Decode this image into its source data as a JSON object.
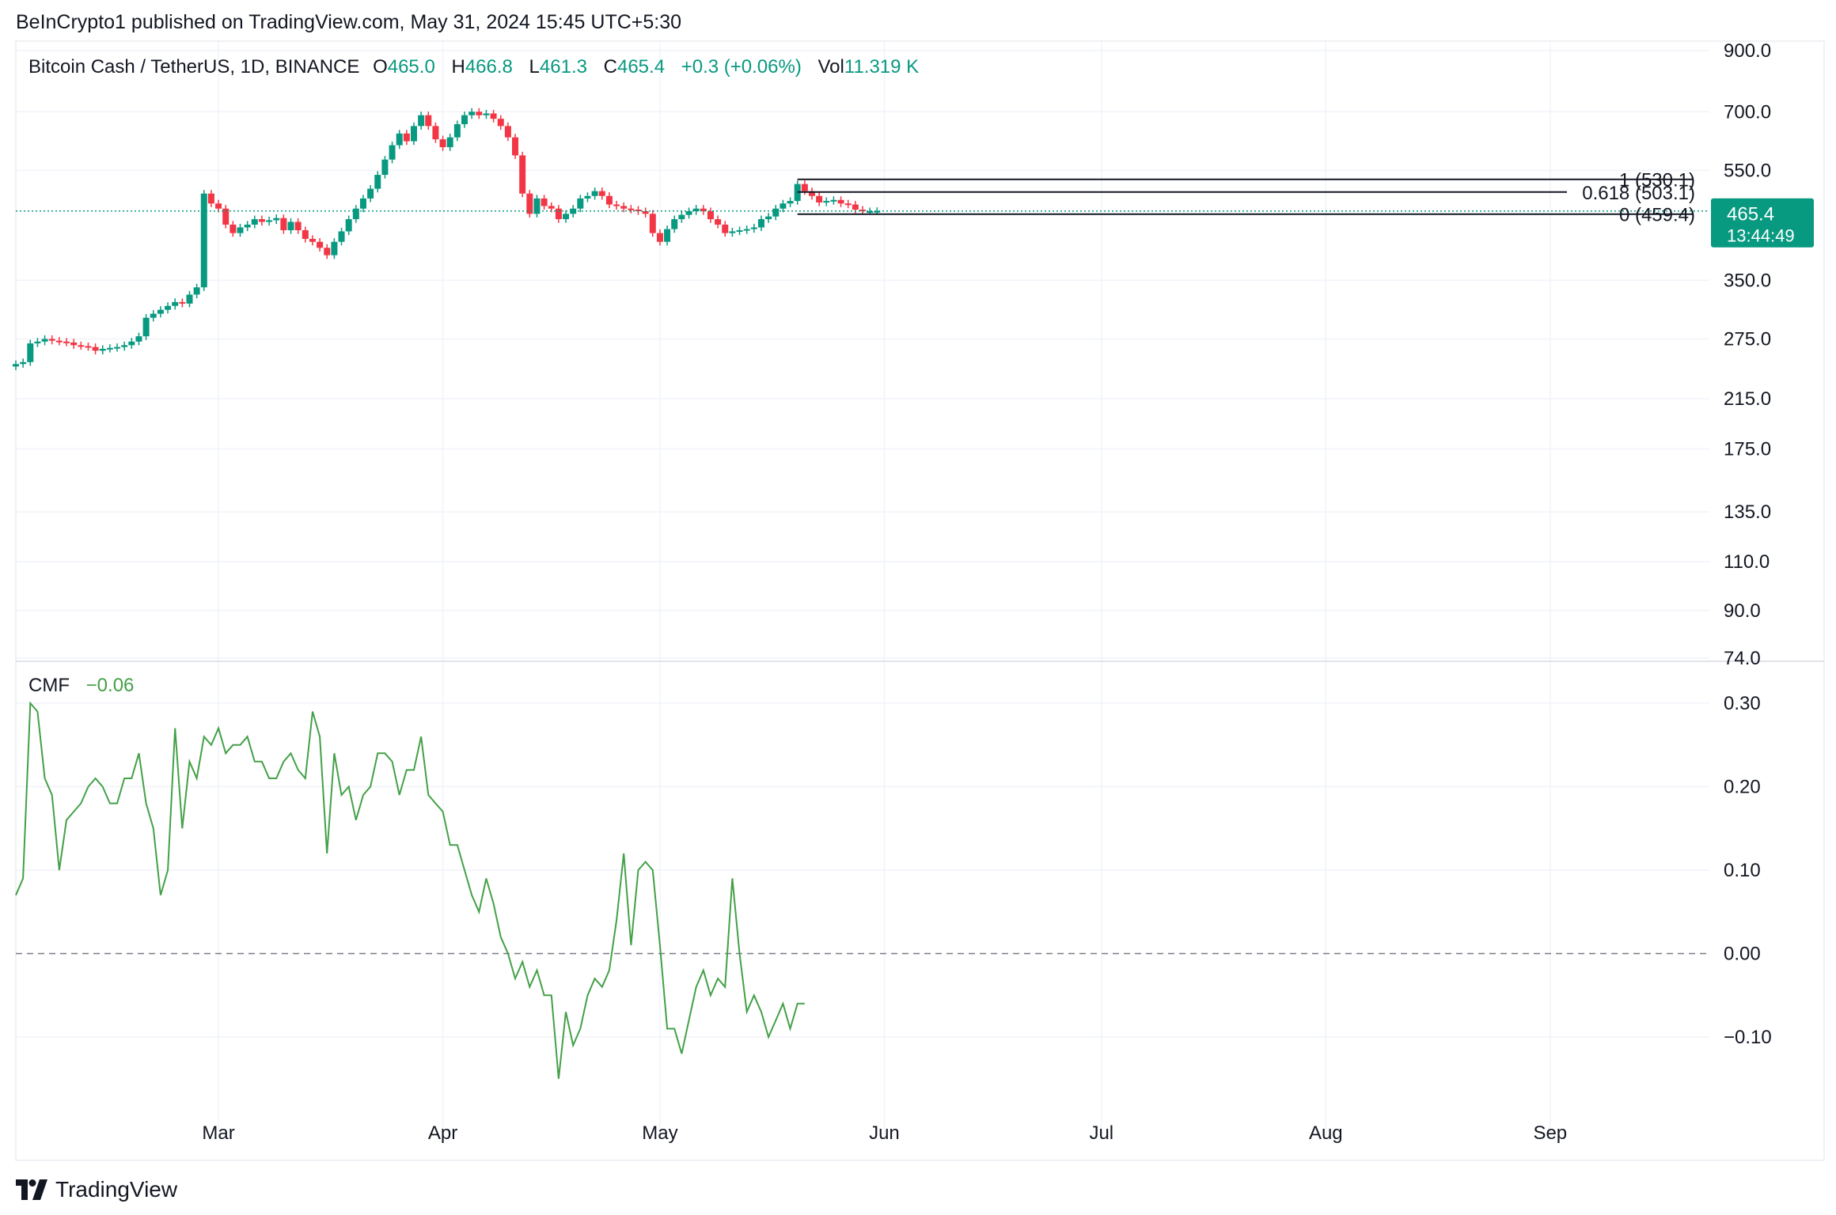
{
  "header": {
    "publisher": "BeInCrypto1 published on TradingView.com, May 31, 2024 15:45 UTC+5:30"
  },
  "legend": {
    "symbol": "Bitcoin Cash / TetherUS, 1D, BINANCE",
    "open_label": "O",
    "open": "465.0",
    "high_label": "H",
    "high": "466.8",
    "low_label": "L",
    "low": "461.3",
    "close_label": "C",
    "close": "465.4",
    "change": "+0.3 (+0.06%)",
    "vol_label": "Vol",
    "volume": "11.319 K"
  },
  "price_tag": {
    "price": "465.4",
    "countdown": "13:44:49"
  },
  "cmf_legend": {
    "label": "CMF",
    "value": "−0.06"
  },
  "footer": {
    "brand": "TradingView"
  },
  "colors": {
    "up": "#089981",
    "down": "#f23645",
    "cmf": "#43a047",
    "last_price": "#089981"
  },
  "chart_data": [
    {
      "type": "candlestick",
      "scale": "log",
      "y_ticks": [
        "900.0",
        "700.0",
        "550.0",
        "350.0",
        "275.0",
        "215.0",
        "175.0",
        "135.0",
        "110.0",
        "90.0",
        "74.0"
      ],
      "y_tick_values": [
        900,
        700,
        550,
        350,
        275,
        215,
        175,
        135,
        110,
        90,
        74
      ],
      "x_ticks": [
        "Mar",
        "Apr",
        "May",
        "Jun",
        "Jul",
        "Aug",
        "Sep"
      ],
      "x_range": [
        "2024-02-02",
        "2024-09-23"
      ],
      "last_price": 465.4,
      "closes": [
        {
          "date": "2024-02-02",
          "c": 248
        },
        {
          "date": "2024-02-03",
          "c": 250
        },
        {
          "date": "2024-02-04",
          "c": 270
        },
        {
          "date": "2024-02-05",
          "c": 272
        },
        {
          "date": "2024-02-06",
          "c": 275
        },
        {
          "date": "2024-02-07",
          "c": 273
        },
        {
          "date": "2024-02-08",
          "c": 272
        },
        {
          "date": "2024-02-09",
          "c": 271
        },
        {
          "date": "2024-02-10",
          "c": 268
        },
        {
          "date": "2024-02-11",
          "c": 267
        },
        {
          "date": "2024-02-12",
          "c": 266
        },
        {
          "date": "2024-02-13",
          "c": 262
        },
        {
          "date": "2024-02-14",
          "c": 264
        },
        {
          "date": "2024-02-15",
          "c": 265
        },
        {
          "date": "2024-02-16",
          "c": 266
        },
        {
          "date": "2024-02-17",
          "c": 268
        },
        {
          "date": "2024-02-18",
          "c": 272
        },
        {
          "date": "2024-02-19",
          "c": 278
        },
        {
          "date": "2024-02-20",
          "c": 300
        },
        {
          "date": "2024-02-21",
          "c": 305
        },
        {
          "date": "2024-02-22",
          "c": 310
        },
        {
          "date": "2024-02-23",
          "c": 315
        },
        {
          "date": "2024-02-24",
          "c": 320
        },
        {
          "date": "2024-02-25",
          "c": 318
        },
        {
          "date": "2024-02-26",
          "c": 330
        },
        {
          "date": "2024-02-27",
          "c": 340
        },
        {
          "date": "2024-02-28",
          "c": 500
        },
        {
          "date": "2024-02-29",
          "c": 480
        },
        {
          "date": "2024-03-01",
          "c": 470
        },
        {
          "date": "2024-03-02",
          "c": 440
        },
        {
          "date": "2024-03-03",
          "c": 425
        },
        {
          "date": "2024-03-04",
          "c": 435
        },
        {
          "date": "2024-03-05",
          "c": 440
        },
        {
          "date": "2024-03-06",
          "c": 450
        },
        {
          "date": "2024-03-07",
          "c": 445
        },
        {
          "date": "2024-03-08",
          "c": 448
        },
        {
          "date": "2024-03-09",
          "c": 452
        },
        {
          "date": "2024-03-10",
          "c": 430
        },
        {
          "date": "2024-03-11",
          "c": 445
        },
        {
          "date": "2024-03-12",
          "c": 430
        },
        {
          "date": "2024-03-13",
          "c": 415
        },
        {
          "date": "2024-03-14",
          "c": 410
        },
        {
          "date": "2024-03-15",
          "c": 400
        },
        {
          "date": "2024-03-16",
          "c": 388
        },
        {
          "date": "2024-03-17",
          "c": 410
        },
        {
          "date": "2024-03-18",
          "c": 428
        },
        {
          "date": "2024-03-19",
          "c": 450
        },
        {
          "date": "2024-03-20",
          "c": 470
        },
        {
          "date": "2024-03-21",
          "c": 490
        },
        {
          "date": "2024-03-22",
          "c": 510
        },
        {
          "date": "2024-03-23",
          "c": 540
        },
        {
          "date": "2024-03-24",
          "c": 575
        },
        {
          "date": "2024-03-25",
          "c": 610
        },
        {
          "date": "2024-03-26",
          "c": 640
        },
        {
          "date": "2024-03-27",
          "c": 620
        },
        {
          "date": "2024-03-28",
          "c": 660
        },
        {
          "date": "2024-03-29",
          "c": 690
        },
        {
          "date": "2024-03-30",
          "c": 660
        },
        {
          "date": "2024-03-31",
          "c": 625
        },
        {
          "date": "2024-04-01",
          "c": 605
        },
        {
          "date": "2024-04-02",
          "c": 630
        },
        {
          "date": "2024-04-03",
          "c": 665
        },
        {
          "date": "2024-04-04",
          "c": 690
        },
        {
          "date": "2024-04-05",
          "c": 700
        },
        {
          "date": "2024-04-06",
          "c": 690
        },
        {
          "date": "2024-04-07",
          "c": 695
        },
        {
          "date": "2024-04-08",
          "c": 680
        },
        {
          "date": "2024-04-09",
          "c": 660
        },
        {
          "date": "2024-04-10",
          "c": 630
        },
        {
          "date": "2024-04-11",
          "c": 585
        },
        {
          "date": "2024-04-12",
          "c": 500
        },
        {
          "date": "2024-04-13",
          "c": 460
        },
        {
          "date": "2024-04-14",
          "c": 490
        },
        {
          "date": "2024-04-15",
          "c": 475
        },
        {
          "date": "2024-04-16",
          "c": 470
        },
        {
          "date": "2024-04-17",
          "c": 450
        },
        {
          "date": "2024-04-18",
          "c": 460
        },
        {
          "date": "2024-04-19",
          "c": 470
        },
        {
          "date": "2024-04-20",
          "c": 490
        },
        {
          "date": "2024-04-21",
          "c": 495
        },
        {
          "date": "2024-04-22",
          "c": 505
        },
        {
          "date": "2024-04-23",
          "c": 495
        },
        {
          "date": "2024-04-24",
          "c": 478
        },
        {
          "date": "2024-04-25",
          "c": 475
        },
        {
          "date": "2024-04-26",
          "c": 470
        },
        {
          "date": "2024-04-27",
          "c": 468
        },
        {
          "date": "2024-04-28",
          "c": 465
        },
        {
          "date": "2024-04-29",
          "c": 460
        },
        {
          "date": "2024-04-30",
          "c": 425
        },
        {
          "date": "2024-05-01",
          "c": 410
        },
        {
          "date": "2024-05-02",
          "c": 432
        },
        {
          "date": "2024-05-03",
          "c": 450
        },
        {
          "date": "2024-05-04",
          "c": 458
        },
        {
          "date": "2024-05-05",
          "c": 465
        },
        {
          "date": "2024-05-06",
          "c": 470
        },
        {
          "date": "2024-05-07",
          "c": 465
        },
        {
          "date": "2024-05-08",
          "c": 450
        },
        {
          "date": "2024-05-09",
          "c": 440
        },
        {
          "date": "2024-05-10",
          "c": 425
        },
        {
          "date": "2024-05-11",
          "c": 428
        },
        {
          "date": "2024-05-12",
          "c": 430
        },
        {
          "date": "2024-05-13",
          "c": 432
        },
        {
          "date": "2024-05-14",
          "c": 435
        },
        {
          "date": "2024-05-15",
          "c": 450
        },
        {
          "date": "2024-05-16",
          "c": 455
        },
        {
          "date": "2024-05-17",
          "c": 470
        },
        {
          "date": "2024-05-18",
          "c": 480
        },
        {
          "date": "2024-05-19",
          "c": 485
        },
        {
          "date": "2024-05-20",
          "c": 520
        },
        {
          "date": "2024-05-21",
          "c": 505
        },
        {
          "date": "2024-05-22",
          "c": 495
        },
        {
          "date": "2024-05-23",
          "c": 482
        },
        {
          "date": "2024-05-24",
          "c": 485
        },
        {
          "date": "2024-05-25",
          "c": 487
        },
        {
          "date": "2024-05-26",
          "c": 480
        },
        {
          "date": "2024-05-27",
          "c": 478
        },
        {
          "date": "2024-05-28",
          "c": 468
        },
        {
          "date": "2024-05-29",
          "c": 465
        },
        {
          "date": "2024-05-30",
          "c": 465
        },
        {
          "date": "2024-05-31",
          "c": 465.4
        }
      ],
      "fibonacci": [
        {
          "label": "1 (530.1)",
          "level": 530.1
        },
        {
          "label": "0.618 (503.1)",
          "level": 503.1
        },
        {
          "label": "0 (459.4)",
          "level": 459.4
        }
      ],
      "fib_start_date": "2024-05-20"
    },
    {
      "type": "line",
      "name": "CMF",
      "y_ticks": [
        "0.30",
        "0.20",
        "0.10",
        "0.00",
        "−0.10"
      ],
      "y_tick_values": [
        0.3,
        0.2,
        0.1,
        0.0,
        -0.1
      ],
      "zero_line": 0.0,
      "start_date": "2024-02-02",
      "values": [
        0.07,
        0.09,
        0.3,
        0.29,
        0.21,
        0.19,
        0.1,
        0.16,
        0.17,
        0.18,
        0.2,
        0.21,
        0.2,
        0.18,
        0.18,
        0.21,
        0.21,
        0.24,
        0.18,
        0.15,
        0.07,
        0.1,
        0.27,
        0.15,
        0.23,
        0.21,
        0.26,
        0.25,
        0.27,
        0.24,
        0.25,
        0.25,
        0.26,
        0.23,
        0.23,
        0.21,
        0.21,
        0.23,
        0.24,
        0.22,
        0.21,
        0.29,
        0.26,
        0.12,
        0.24,
        0.19,
        0.2,
        0.16,
        0.19,
        0.2,
        0.24,
        0.24,
        0.23,
        0.19,
        0.22,
        0.22,
        0.26,
        0.19,
        0.18,
        0.17,
        0.13,
        0.13,
        0.1,
        0.07,
        0.05,
        0.09,
        0.06,
        0.02,
        0.0,
        -0.03,
        -0.01,
        -0.04,
        -0.02,
        -0.05,
        -0.05,
        -0.15,
        -0.07,
        -0.11,
        -0.09,
        -0.05,
        -0.03,
        -0.04,
        -0.02,
        0.04,
        0.12,
        0.01,
        0.1,
        0.11,
        0.1,
        0.01,
        -0.09,
        -0.09,
        -0.12,
        -0.08,
        -0.04,
        -0.02,
        -0.05,
        -0.03,
        -0.04,
        0.09,
        0.0,
        -0.07,
        -0.05,
        -0.07,
        -0.1,
        -0.08,
        -0.06,
        -0.09,
        -0.06,
        -0.06
      ]
    }
  ]
}
